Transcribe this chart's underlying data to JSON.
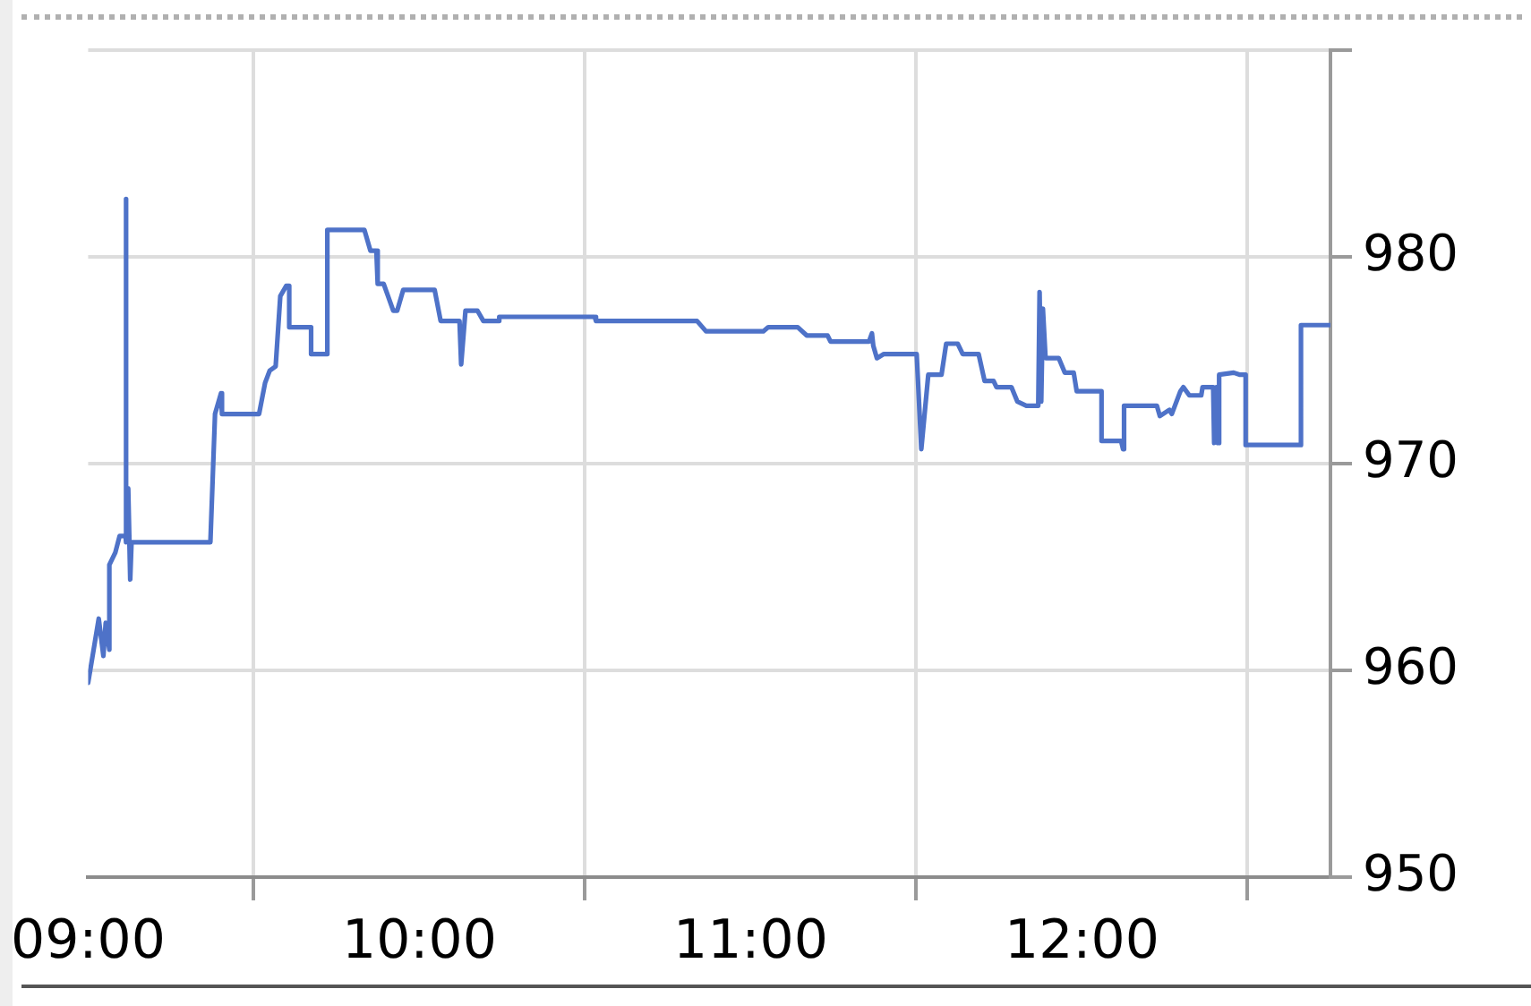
{
  "chart_data": {
    "type": "line",
    "x": [
      9.0,
      9.032,
      9.046,
      9.053,
      9.064,
      9.064,
      9.082,
      9.095,
      9.113,
      9.113,
      9.116,
      9.121,
      9.127,
      9.131,
      9.369,
      9.383,
      9.401,
      9.404,
      9.516,
      9.534,
      9.548,
      9.566,
      9.58,
      9.598,
      9.607,
      9.607,
      9.673,
      9.673,
      9.722,
      9.722,
      9.834,
      9.852,
      9.87,
      9.874,
      9.892,
      9.921,
      9.933,
      9.951,
      10.046,
      10.064,
      10.121,
      10.126,
      10.139,
      10.175,
      10.193,
      10.237,
      10.241,
      10.529,
      10.533,
      10.838,
      10.865,
      11.038,
      11.053,
      11.142,
      11.169,
      11.232,
      11.241,
      11.357,
      11.366,
      11.37,
      11.381,
      11.402,
      11.501,
      11.515,
      11.536,
      11.576,
      11.59,
      11.625,
      11.64,
      11.688,
      11.706,
      11.733,
      11.742,
      11.787,
      11.805,
      11.832,
      11.868,
      11.872,
      11.877,
      11.882,
      11.89,
      11.93,
      11.948,
      11.975,
      11.984,
      12.059,
      12.059,
      12.118,
      12.124,
      12.127,
      12.226,
      12.235,
      12.264,
      12.271,
      12.297,
      12.306,
      12.324,
      12.36,
      12.364,
      12.396,
      12.399,
      12.406,
      12.41,
      12.414,
      12.458,
      12.477,
      12.494,
      12.494,
      12.661,
      12.661,
      12.75
    ],
    "values": [
      959.4,
      962.5,
      960.7,
      962.3,
      961.0,
      965.1,
      965.7,
      966.5,
      966.5,
      982.8,
      966.2,
      968.8,
      964.4,
      966.2,
      966.2,
      972.4,
      973.4,
      972.4,
      972.4,
      973.9,
      974.5,
      974.7,
      978.1,
      978.6,
      978.6,
      976.6,
      976.6,
      975.3,
      975.3,
      981.3,
      981.3,
      980.3,
      980.3,
      978.7,
      978.7,
      977.4,
      977.4,
      978.4,
      978.4,
      976.9,
      976.9,
      974.8,
      977.4,
      977.4,
      976.9,
      976.9,
      977.1,
      977.1,
      976.9,
      976.9,
      976.4,
      976.4,
      976.6,
      976.6,
      976.2,
      976.2,
      975.9,
      975.9,
      976.3,
      975.7,
      975.1,
      975.3,
      975.3,
      970.7,
      974.3,
      974.3,
      975.8,
      975.8,
      975.3,
      975.3,
      974.0,
      974.0,
      973.7,
      973.7,
      973.0,
      972.8,
      972.8,
      978.3,
      973.0,
      977.5,
      975.1,
      975.1,
      974.4,
      974.4,
      973.5,
      973.5,
      971.1,
      971.1,
      970.7,
      972.8,
      972.8,
      972.3,
      972.6,
      972.4,
      973.5,
      973.7,
      973.3,
      973.3,
      973.7,
      973.7,
      971.0,
      973.7,
      971.0,
      974.3,
      974.4,
      974.3,
      974.3,
      970.9,
      970.9,
      976.7,
      976.7
    ],
    "color": "#4e72c8",
    "xlim": [
      9,
      12.75
    ],
    "xticks": [
      {
        "value": 9,
        "label": "09:00"
      },
      {
        "value": 9.5,
        "label": null
      },
      {
        "value": 10,
        "label": "10:00"
      },
      {
        "value": 10.5,
        "label": null
      },
      {
        "value": 11,
        "label": "11:00"
      },
      {
        "value": 11.5,
        "label": null
      },
      {
        "value": 12,
        "label": "12:00"
      },
      {
        "value": 12.5,
        "label": null
      }
    ],
    "ylim": [
      950,
      990
    ],
    "yticks": [
      950,
      960,
      970,
      980,
      {
        "value": 990,
        "label": null
      }
    ],
    "grid": true,
    "legend": false,
    "marker": "none",
    "line_style": "solid"
  }
}
